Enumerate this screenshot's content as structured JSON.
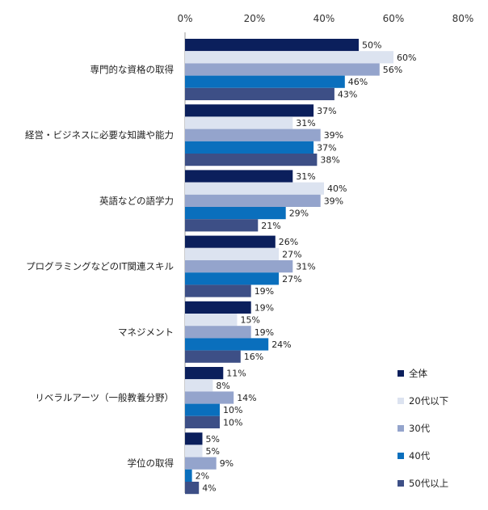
{
  "chart_data": {
    "type": "bar",
    "orientation": "horizontal",
    "xlim": [
      0,
      80
    ],
    "x_ticks": [
      "0%",
      "20%",
      "40%",
      "60%",
      "80%"
    ],
    "grid": false,
    "legend_position": "right",
    "categories": [
      "専門的な資格の取得",
      "経営・ビジネスに必要な知識や能力",
      "英語などの語学力",
      "プログラミングなどのIT関連スキル",
      "マネジメント",
      "リベラルアーツ（一般教養分野）",
      "学位の取得"
    ],
    "series": [
      {
        "name": "全体",
        "color": "#0b1f5c",
        "values": [
          50,
          37,
          31,
          26,
          19,
          11,
          5
        ]
      },
      {
        "name": "20代以下",
        "color": "#dce3f0",
        "values": [
          60,
          31,
          40,
          27,
          15,
          8,
          5
        ]
      },
      {
        "name": "30代",
        "color": "#94a4cc",
        "values": [
          56,
          39,
          39,
          31,
          19,
          14,
          9
        ]
      },
      {
        "name": "40代",
        "color": "#0a6fbd",
        "values": [
          46,
          37,
          29,
          27,
          24,
          10,
          2
        ]
      },
      {
        "name": "50代以上",
        "color": "#3d4f86",
        "values": [
          43,
          38,
          21,
          19,
          16,
          10,
          4
        ]
      }
    ],
    "value_suffix": "%"
  }
}
